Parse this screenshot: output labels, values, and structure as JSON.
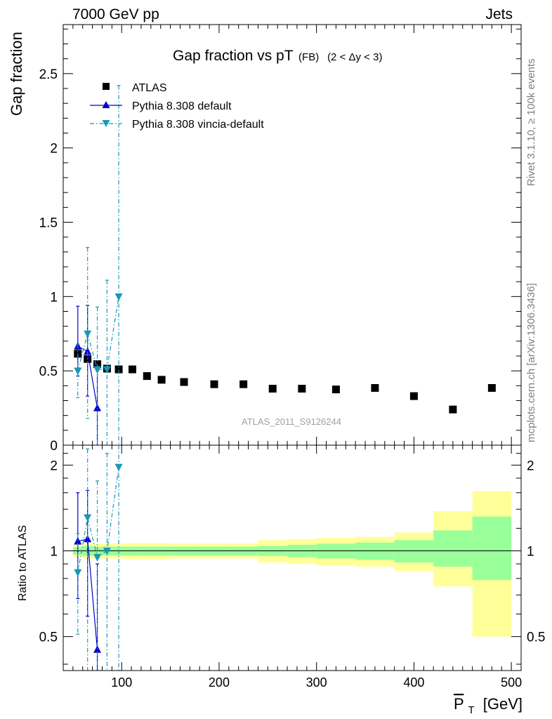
{
  "header": {
    "energy_label": "7000 GeV pp",
    "process_label": "Jets",
    "rivet_note": "Rivet 3.1.10, ≥ 100k events",
    "source_note": "mcplots.cern.ch [arXiv:1306.3436]"
  },
  "chart_data": {
    "type": "scatter",
    "title": "Gap fraction vs pT",
    "title_sub": "(FB)",
    "title_range": "(2 < Δy < 3)",
    "analysis_label": "ATLAS_2011_S9126244",
    "xlabel": "P",
    "xlabel_sub": "T",
    "xlabel_unit": "[GeV]",
    "xlim": [
      40,
      510
    ],
    "x_ticks": [
      100,
      200,
      300,
      400,
      500
    ],
    "x_tick_labels": [
      "100",
      "200",
      "300",
      "400",
      "500"
    ],
    "upper": {
      "ylabel": "Gap fraction",
      "ylim": [
        0,
        2.83
      ],
      "y_ticks": [
        0,
        0.5,
        1,
        1.5,
        2,
        2.5
      ],
      "y_tick_labels": [
        "0",
        "0.5",
        "1",
        "1.5",
        "2",
        "2.5"
      ],
      "series": [
        {
          "name": "ATLAS",
          "marker": "square",
          "color": "#000000",
          "x": [
            55,
            65,
            75,
            85,
            97,
            111,
            126,
            141,
            164,
            195,
            225,
            255,
            285,
            320,
            360,
            400,
            440,
            480
          ],
          "y": [
            0.615,
            0.58,
            0.545,
            0.515,
            0.51,
            0.51,
            0.465,
            0.44,
            0.425,
            0.41,
            0.41,
            0.38,
            0.38,
            0.375,
            0.385,
            0.33,
            0.24,
            0.385
          ]
        },
        {
          "name": "Pythia 8.308 default",
          "marker": "triangle-up",
          "color": "#0000cc",
          "line": "solid",
          "x": [
            55,
            65,
            75
          ],
          "y": [
            0.665,
            0.63,
            0.25
          ],
          "err_lo": [
            0.2,
            0.3,
            0.25
          ],
          "err_hi": [
            0.27,
            0.31,
            0.25
          ]
        },
        {
          "name": "Pythia 8.308 vincia-default",
          "marker": "triangle-down",
          "color": "#1799b5",
          "line": "dashdot",
          "x": [
            55,
            65,
            75,
            85,
            97
          ],
          "y": [
            0.5,
            0.75,
            0.51,
            0.51,
            1.0
          ],
          "err_lo": [
            0.18,
            0.57,
            0.51,
            0.51,
            1.0
          ],
          "err_hi": [
            0.18,
            0.58,
            0.42,
            0.6,
            1.42
          ]
        }
      ]
    },
    "lower": {
      "ylabel": "Ratio to ATLAS",
      "ylim": [
        0.38,
        2.35
      ],
      "scale": "log",
      "y_ticks": [
        0.5,
        1,
        2
      ],
      "y_tick_labels": [
        "0.5",
        "1",
        "2"
      ],
      "reference": 1.0,
      "bands": {
        "bin_edges": [
          50,
          60,
          70,
          80,
          90,
          104,
          118,
          134,
          150,
          180,
          210,
          240,
          270,
          300,
          340,
          380,
          420,
          460,
          500
        ],
        "stat_lo": [
          0.97,
          0.96,
          0.965,
          0.965,
          0.965,
          0.965,
          0.965,
          0.965,
          0.965,
          0.965,
          0.965,
          0.96,
          0.95,
          0.94,
          0.93,
          0.91,
          0.88,
          0.79,
          0.78
        ],
        "stat_hi": [
          1.03,
          1.04,
          1.035,
          1.035,
          1.035,
          1.035,
          1.035,
          1.035,
          1.035,
          1.035,
          1.035,
          1.04,
          1.05,
          1.06,
          1.07,
          1.09,
          1.18,
          1.32,
          1.33
        ],
        "syst_lo": [
          0.95,
          0.94,
          0.94,
          0.94,
          0.94,
          0.935,
          0.935,
          0.935,
          0.94,
          0.94,
          0.94,
          0.91,
          0.9,
          0.89,
          0.88,
          0.85,
          0.75,
          0.5,
          0.44
        ],
        "syst_hi": [
          1.05,
          1.06,
          1.06,
          1.06,
          1.06,
          1.065,
          1.065,
          1.065,
          1.06,
          1.06,
          1.06,
          1.09,
          1.1,
          1.11,
          1.12,
          1.16,
          1.38,
          1.62,
          1.6
        ],
        "stat_color": "#99ff99",
        "syst_color": "#ffff99"
      },
      "series": [
        {
          "name": "Pythia 8.308 default",
          "marker": "triangle-up",
          "color": "#0000cc",
          "line": "solid",
          "x": [
            55,
            65,
            75
          ],
          "y": [
            1.08,
            1.1,
            0.45
          ],
          "err_lo": [
            0.4,
            0.51,
            0.45
          ],
          "err_hi": [
            0.52,
            0.53,
            0.45
          ]
        },
        {
          "name": "Pythia 8.308 vincia-default",
          "marker": "triangle-down",
          "color": "#1799b5",
          "line": "dashdot",
          "x": [
            55,
            65,
            75,
            85,
            97
          ],
          "y": [
            0.84,
            1.31,
            0.95,
            1.0,
            1.97
          ],
          "err_lo": [
            0.33,
            0.98,
            0.95,
            1.0,
            1.97
          ],
          "err_hi": [
            0.31,
            0.97,
            0.81,
            1.2,
            2.8
          ]
        }
      ]
    }
  }
}
